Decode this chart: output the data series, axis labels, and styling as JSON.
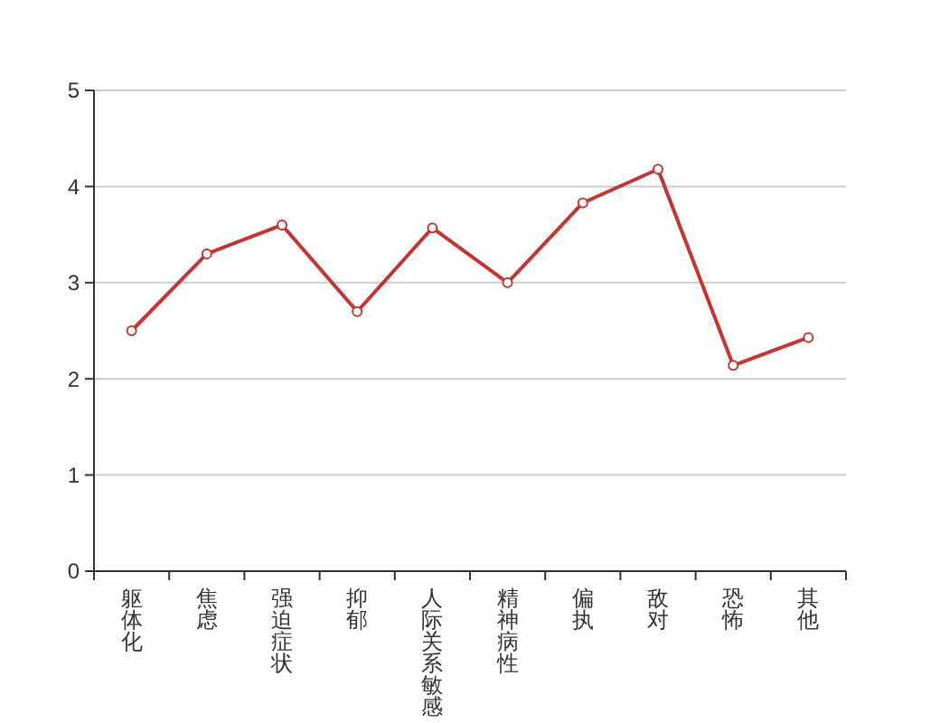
{
  "chart_data": {
    "type": "line",
    "categories": [
      "躯体化",
      "焦虑",
      "强迫症状",
      "抑郁",
      "人际关系敏感",
      "精神病性",
      "偏执",
      "敌对",
      "恐怖",
      "其他"
    ],
    "series": [
      {
        "color": "#c23531",
        "values": [
          2.5,
          3.3,
          3.6,
          2.7,
          3.57,
          3.0,
          3.83,
          4.18,
          2.14,
          2.43
        ]
      }
    ],
    "ylim": [
      0,
      5
    ],
    "yticks": [
      0,
      1,
      2,
      3,
      4,
      5
    ],
    "grid": "y",
    "marker": "circle",
    "line_style": "solid"
  }
}
